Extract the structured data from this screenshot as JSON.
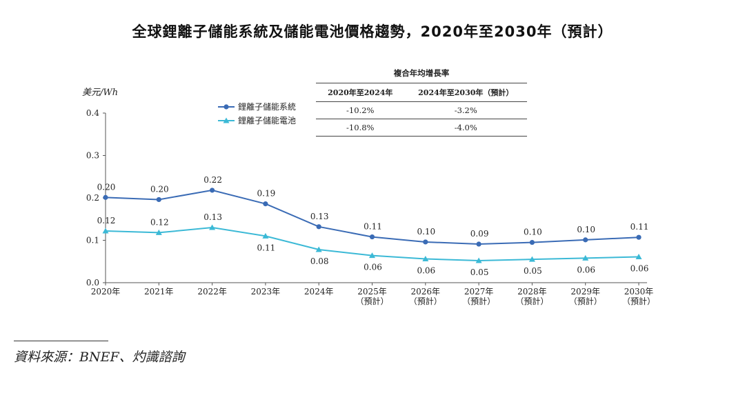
{
  "title": "全球鋰離子儲能系統及儲能電池價格趨勢，2020年至2030年（預計）",
  "chart_data": {
    "type": "line",
    "ylabel": "美元/Wh",
    "ylim": [
      0,
      0.4
    ],
    "yticks": [
      "0.0",
      "0.1",
      "0.2",
      "0.3",
      "0.4"
    ],
    "categories": [
      [
        "2020年"
      ],
      [
        "2021年"
      ],
      [
        "2022年"
      ],
      [
        "2023年"
      ],
      [
        "2024年"
      ],
      [
        "2025年",
        "（預計）"
      ],
      [
        "2026年",
        "（預計）"
      ],
      [
        "2027年",
        "（預計）"
      ],
      [
        "2028年",
        "（預計）"
      ],
      [
        "2029年",
        "（預計）"
      ],
      [
        "2030年",
        "（預計）"
      ]
    ],
    "series": [
      {
        "name": "鋰離子儲能系統",
        "color": "#3a6bb5",
        "marker": "circle",
        "values": [
          0.201,
          0.196,
          0.218,
          0.186,
          0.132,
          0.108,
          0.096,
          0.091,
          0.095,
          0.101,
          0.107
        ],
        "labels": [
          "0.20",
          "0.20",
          "0.22",
          "0.19",
          "0.13",
          "0.11",
          "0.10",
          "0.09",
          "0.10",
          "0.10",
          "0.11"
        ]
      },
      {
        "name": "鋰離子儲能電池",
        "color": "#3bb9d6",
        "marker": "triangle",
        "values": [
          0.122,
          0.118,
          0.13,
          0.11,
          0.078,
          0.064,
          0.056,
          0.052,
          0.055,
          0.058,
          0.061
        ],
        "labels": [
          "0.12",
          "0.12",
          "0.13",
          "0.11",
          "0.08",
          "0.06",
          "0.06",
          "0.05",
          "0.05",
          "0.06",
          "0.06"
        ]
      }
    ],
    "legend_position": "top-left"
  },
  "cagr_table": {
    "heading": "複合年均增長率",
    "columns": [
      "2020年至2024年",
      "2024年至2030年（預計）"
    ],
    "rows": [
      [
        "-10.2%",
        "-3.2%"
      ],
      [
        "-10.8%",
        "-4.0%"
      ]
    ]
  },
  "source": "資料來源：BNEF、灼識諮詢"
}
